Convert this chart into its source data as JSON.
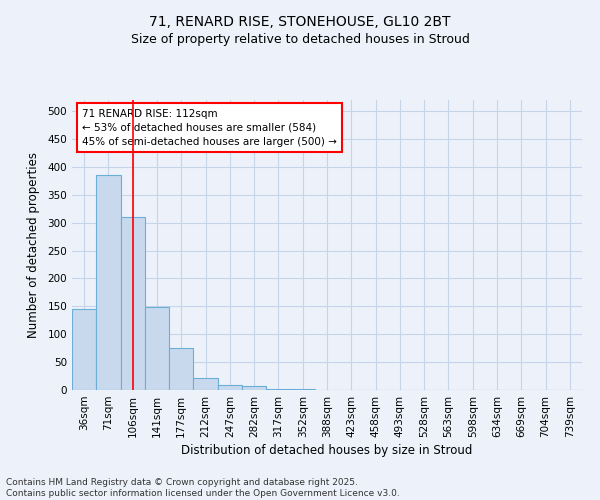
{
  "title_line1": "71, RENARD RISE, STONEHOUSE, GL10 2BT",
  "title_line2": "Size of property relative to detached houses in Stroud",
  "xlabel": "Distribution of detached houses by size in Stroud",
  "ylabel": "Number of detached properties",
  "bar_labels": [
    "36sqm",
    "71sqm",
    "106sqm",
    "141sqm",
    "177sqm",
    "212sqm",
    "247sqm",
    "282sqm",
    "317sqm",
    "352sqm",
    "388sqm",
    "423sqm",
    "458sqm",
    "493sqm",
    "528sqm",
    "563sqm",
    "598sqm",
    "634sqm",
    "669sqm",
    "704sqm",
    "739sqm"
  ],
  "bar_values": [
    145,
    385,
    310,
    148,
    75,
    22,
    9,
    7,
    2,
    1,
    0,
    0,
    0,
    0,
    0,
    0,
    0,
    0,
    0,
    0,
    0
  ],
  "bar_color": "#c8d9ee",
  "bar_edgecolor": "#6baed6",
  "bar_linewidth": 0.8,
  "red_line_x": 2.0,
  "annotation_line1": "71 RENARD RISE: 112sqm",
  "annotation_line2": "← 53% of detached houses are smaller (584)",
  "annotation_line3": "45% of semi-detached houses are larger (500) →",
  "annotation_box_color": "white",
  "annotation_box_edgecolor": "red",
  "ylim": [
    0,
    520
  ],
  "yticks": [
    0,
    50,
    100,
    150,
    200,
    250,
    300,
    350,
    400,
    450,
    500
  ],
  "background_color": "#edf2fa",
  "grid_color": "#c5d4e8",
  "footer_line1": "Contains HM Land Registry data © Crown copyright and database right 2025.",
  "footer_line2": "Contains public sector information licensed under the Open Government Licence v3.0.",
  "title_fontsize": 10,
  "subtitle_fontsize": 9,
  "axis_label_fontsize": 8.5,
  "tick_fontsize": 7.5,
  "annotation_fontsize": 7.5,
  "footer_fontsize": 6.5
}
